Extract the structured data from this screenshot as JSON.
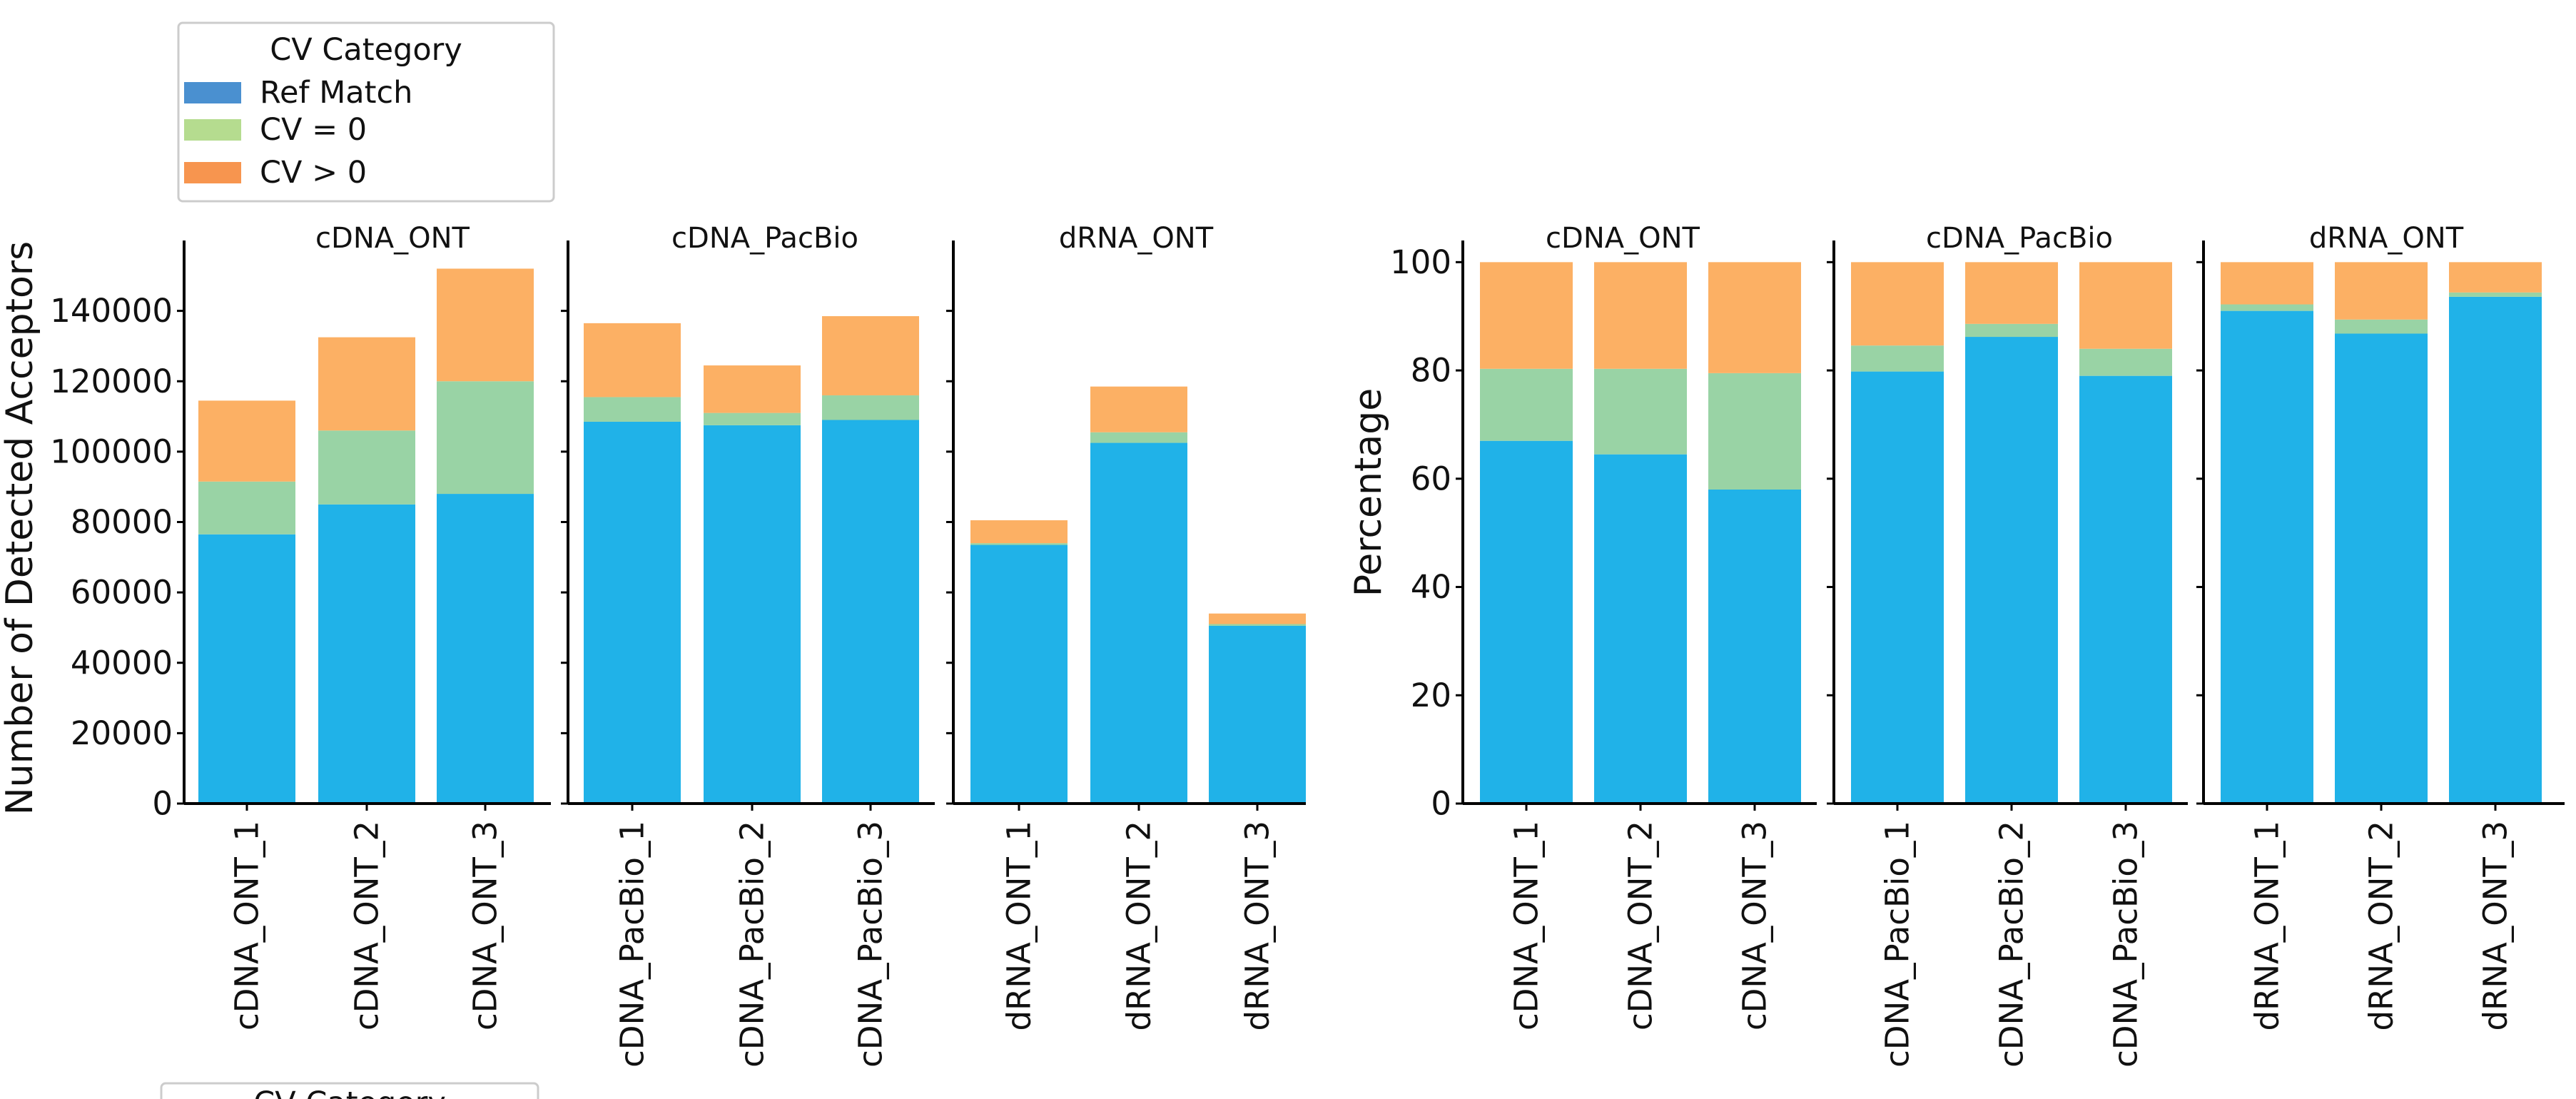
{
  "legend": {
    "title": "CV Category",
    "entries": [
      {
        "label": "Ref Match",
        "swatch": "#4a90d0"
      },
      {
        "label": "CV = 0",
        "swatch": "#b5dc8f"
      },
      {
        "label": "CV > 0",
        "swatch": "#f7954f"
      }
    ],
    "cut_title": "CV Category"
  },
  "colors": {
    "ref_match": "#20b2e8",
    "cv_zero": "#99d3a5",
    "cv_pos": "#fcb064",
    "axis": "#000000"
  },
  "chart_data": [
    {
      "type": "bar",
      "stacked": true,
      "ylabel": "Number of Detected Acceptors",
      "ylim": [
        0,
        160000
      ],
      "yticks": [
        0,
        20000,
        40000,
        60000,
        80000,
        100000,
        120000,
        140000
      ],
      "series_names": [
        "Ref Match",
        "CV = 0",
        "CV > 0"
      ],
      "panels": [
        {
          "title": "cDNA_ONT",
          "categories": [
            "cDNA_ONT_1",
            "cDNA_ONT_2",
            "cDNA_ONT_3"
          ],
          "ref_match": [
            76500,
            85000,
            88000
          ],
          "cv_zero": [
            15000,
            21000,
            32000
          ],
          "cv_pos": [
            23000,
            26500,
            32000
          ]
        },
        {
          "title": "cDNA_PacBio",
          "categories": [
            "cDNA_PacBio_1",
            "cDNA_PacBio_2",
            "cDNA_PacBio_3"
          ],
          "ref_match": [
            108500,
            107500,
            109000
          ],
          "cv_zero": [
            7000,
            3500,
            7000
          ],
          "cv_pos": [
            21000,
            13500,
            22500
          ]
        },
        {
          "title": "dRNA_ONT",
          "categories": [
            "dRNA_ONT_1",
            "dRNA_ONT_2",
            "dRNA_ONT_3"
          ],
          "ref_match": [
            73500,
            102500,
            50500
          ],
          "cv_zero": [
            500,
            3000,
            500
          ],
          "cv_pos": [
            6500,
            13000,
            3000
          ]
        }
      ]
    },
    {
      "type": "bar",
      "stacked": true,
      "ylabel": "Percentage",
      "ylim": [
        0,
        104
      ],
      "yticks": [
        0,
        20,
        40,
        60,
        80,
        100
      ],
      "series_names": [
        "Ref Match",
        "CV = 0",
        "CV > 0"
      ],
      "panels": [
        {
          "title": "cDNA_ONT",
          "categories": [
            "cDNA_ONT_1",
            "cDNA_ONT_2",
            "cDNA_ONT_3"
          ],
          "ref_match": [
            67,
            64.5,
            58
          ],
          "cv_zero": [
            13.3,
            15.8,
            21.5
          ],
          "cv_pos": [
            19.7,
            19.7,
            20.5
          ]
        },
        {
          "title": "cDNA_PacBio",
          "categories": [
            "cDNA_PacBio_1",
            "cDNA_PacBio_2",
            "cDNA_PacBio_3"
          ],
          "ref_match": [
            79.8,
            86.2,
            79
          ],
          "cv_zero": [
            4.8,
            2.4,
            5
          ],
          "cv_pos": [
            15.4,
            11.4,
            16
          ]
        },
        {
          "title": "dRNA_ONT",
          "categories": [
            "dRNA_ONT_1",
            "dRNA_ONT_2",
            "dRNA_ONT_3"
          ],
          "ref_match": [
            91,
            86.8,
            93.6
          ],
          "cv_zero": [
            1.2,
            2.6,
            0.8
          ],
          "cv_pos": [
            7.8,
            10.6,
            5.6
          ]
        }
      ]
    }
  ]
}
